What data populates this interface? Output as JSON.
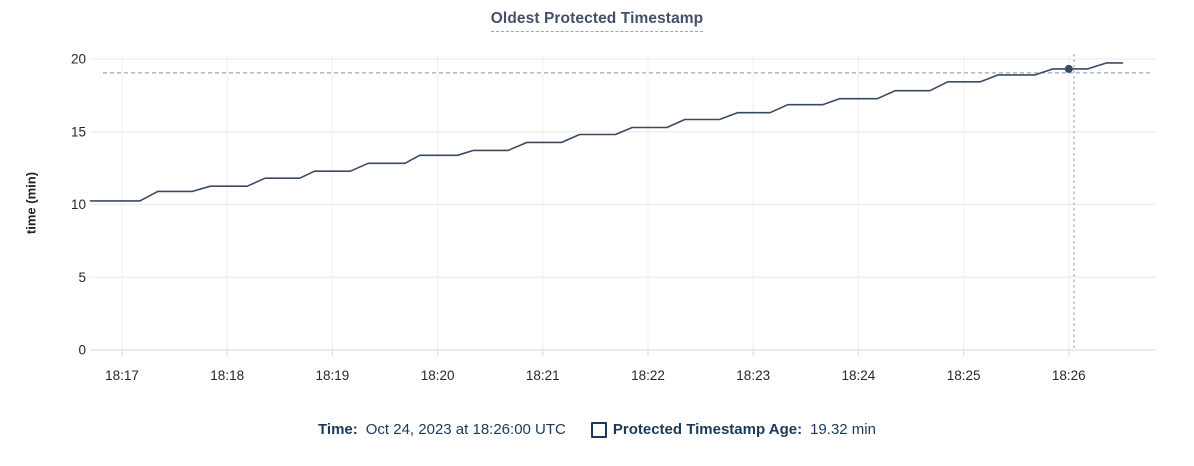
{
  "chart": {
    "title": "Oldest Protected Timestamp",
    "ylabel": "time (min)"
  },
  "legend": {
    "time_label": "Time:",
    "time_value": "Oct 24, 2023 at 18:26:00 UTC",
    "series_label": "Protected Timestamp Age:",
    "series_value": "19.32 min"
  },
  "chart_data": {
    "type": "line",
    "title": "Oldest Protected Timestamp",
    "xlabel": "",
    "ylabel": "time (min)",
    "ylim": [
      0,
      20
    ],
    "y_ticks": [
      0,
      5,
      10,
      15,
      20
    ],
    "x_tick_labels": [
      "18:17",
      "18:18",
      "18:19",
      "18:20",
      "18:21",
      "18:22",
      "18:23",
      "18:24",
      "18:25",
      "18:26"
    ],
    "x_unit": "minutes after 18:17 UTC, Oct 24 2023",
    "x_range": [
      -0.3,
      9.83
    ],
    "grid": true,
    "legend_position": "bottom",
    "series": [
      {
        "name": "Protected Timestamp Age",
        "unit": "min",
        "points": [
          [
            -0.3,
            10.25
          ],
          [
            0.17,
            10.25
          ],
          [
            0.34,
            10.9
          ],
          [
            0.67,
            10.9
          ],
          [
            0.84,
            11.26
          ],
          [
            1.19,
            11.26
          ],
          [
            1.36,
            11.81
          ],
          [
            1.69,
            11.81
          ],
          [
            1.83,
            12.29
          ],
          [
            2.17,
            12.29
          ],
          [
            2.34,
            12.83
          ],
          [
            2.69,
            12.83
          ],
          [
            2.83,
            13.38
          ],
          [
            3.19,
            13.38
          ],
          [
            3.34,
            13.72
          ],
          [
            3.67,
            13.72
          ],
          [
            3.85,
            14.27
          ],
          [
            4.18,
            14.27
          ],
          [
            4.35,
            14.81
          ],
          [
            4.69,
            14.81
          ],
          [
            4.85,
            15.29
          ],
          [
            5.18,
            15.29
          ],
          [
            5.35,
            15.84
          ],
          [
            5.68,
            15.84
          ],
          [
            5.85,
            16.31
          ],
          [
            6.16,
            16.31
          ],
          [
            6.33,
            16.86
          ],
          [
            6.66,
            16.86
          ],
          [
            6.82,
            17.27
          ],
          [
            7.18,
            17.27
          ],
          [
            7.35,
            17.82
          ],
          [
            7.68,
            17.82
          ],
          [
            7.85,
            18.43
          ],
          [
            8.16,
            18.43
          ],
          [
            8.33,
            18.91
          ],
          [
            8.68,
            18.91
          ],
          [
            8.85,
            19.32
          ],
          [
            9.18,
            19.32
          ],
          [
            9.36,
            19.73
          ],
          [
            9.51,
            19.73
          ]
        ]
      }
    ],
    "hover": {
      "time": "18:26:00 UTC",
      "point": {
        "t": 9.0,
        "value": 19.32
      },
      "crosshair": {
        "t": 9.05,
        "value": 19.05
      }
    },
    "colors": {
      "line": "#3b4a63",
      "dot": "#3b4a63",
      "crosshair": "#a5b4c1",
      "grid_h": "#ededee",
      "grid_v": "#f2f2f3",
      "axis": "#e0e0e1",
      "tick_stub": "#dcdcdd",
      "tick_text": "#24272e",
      "title": "#44506a",
      "legend_text": "#1c3a57"
    }
  }
}
